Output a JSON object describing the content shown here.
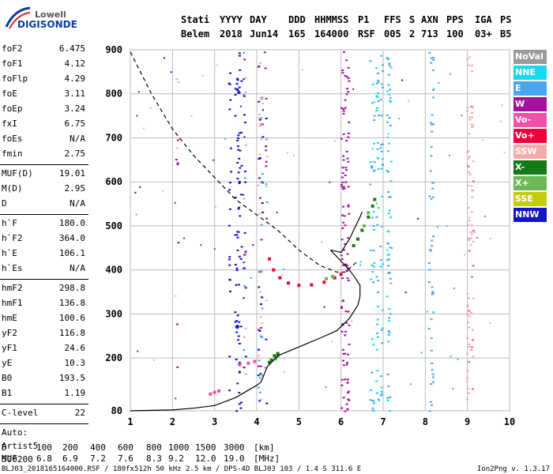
{
  "logo": {
    "line1": "Lowell",
    "line2": "DIGISONDE"
  },
  "header": {
    "row1": [
      "Stati",
      "YYYY",
      "DAY",
      "DDD",
      "HHMMSS",
      "P1",
      "FFS",
      "S",
      "AXN",
      "PPS",
      "IGA",
      "PS"
    ],
    "row2": [
      "Belem",
      "2018",
      "Jun14",
      "165",
      "164000",
      "RSF",
      "005",
      "2",
      "713",
      "100",
      "03+",
      "B5"
    ]
  },
  "params": {
    "g1": [
      [
        "foF2",
        "6.475"
      ],
      [
        "foF1",
        "4.12"
      ],
      [
        "foFlp",
        "4.29"
      ],
      [
        "foE",
        "3.11"
      ],
      [
        "foEp",
        "3.24"
      ],
      [
        "fxI",
        "6.75"
      ],
      [
        "foEs",
        "N/A"
      ],
      [
        "fmin",
        "2.75"
      ]
    ],
    "g2": [
      [
        "MUF(D)",
        "19.01"
      ],
      [
        "M(D)",
        "2.95"
      ],
      [
        "D",
        "N/A"
      ]
    ],
    "g3": [
      [
        "h`F",
        "180.0"
      ],
      [
        "h`F2",
        "364.0"
      ],
      [
        "h`E",
        "106.1"
      ],
      [
        "h`Es",
        "N/A"
      ]
    ],
    "g4": [
      [
        "hmF2",
        "298.8"
      ],
      [
        "hmF1",
        "136.8"
      ],
      [
        "hmE",
        "100.6"
      ],
      [
        "yF2",
        "116.8"
      ],
      [
        "yF1",
        "24.6"
      ],
      [
        "yE",
        "10.3"
      ],
      [
        "B0",
        "193.5"
      ],
      [
        "B1",
        "1.19"
      ]
    ],
    "g5": [
      [
        "C-level",
        "22"
      ]
    ],
    "auto": [
      "Auto:",
      "Artist5",
      "500200"
    ]
  },
  "legend": [
    {
      "label": "NoVal",
      "color": "#9a9a9a"
    },
    {
      "label": "NNE",
      "color": "#17d8ee"
    },
    {
      "label": "E",
      "color": "#49a6ee"
    },
    {
      "label": "W",
      "color": "#a2129e"
    },
    {
      "label": "Vo-",
      "color": "#f051a8"
    },
    {
      "label": "Vo+",
      "color": "#ee003c"
    },
    {
      "label": "SSW",
      "color": "#f5aaaa"
    },
    {
      "label": "X-",
      "color": "#137a16"
    },
    {
      "label": "X+",
      "color": "#6cb857"
    },
    {
      "label": "SSE",
      "color": "#c4cc12"
    },
    {
      "label": "NNW",
      "color": "#1414c8"
    }
  ],
  "footer": {
    "d_label": "D",
    "d_values": [
      "100",
      "200",
      "400",
      "600",
      "800",
      "1000",
      "1500",
      "3000",
      "[km]"
    ],
    "muf_label": "MUF",
    "muf_values": [
      "6.8",
      "6.9",
      "7.2",
      "7.6",
      "8.3",
      "9.2",
      "12.0",
      "19.0",
      "[MHz]"
    ],
    "info": "BLJ03_2018165164000.RSF / 180fx512h 50 kHz 2.5 km / DPS-4D BLJ03 103 / 1.4 S 311.6 E",
    "version": "Ion2Png v. 1.3.17"
  },
  "chart_data": {
    "type": "scatter",
    "title": "",
    "xlabel": "",
    "ylabel": "",
    "xlim": [
      1,
      10
    ],
    "ylim": [
      80,
      900
    ],
    "x_ticks": [
      1,
      2,
      3,
      4,
      5,
      6,
      7,
      8,
      9,
      10
    ],
    "y_ticks": [
      80,
      200,
      300,
      400,
      500,
      600,
      700,
      800,
      900
    ],
    "grid": true,
    "series": [
      {
        "name": "Vo+",
        "color": "#ee003c",
        "kind": "trace",
        "points": [
          [
            4.3,
            425
          ],
          [
            4.4,
            400
          ],
          [
            4.55,
            382
          ],
          [
            4.75,
            370
          ],
          [
            5.0,
            365
          ],
          [
            5.3,
            366
          ],
          [
            5.6,
            372
          ],
          [
            5.85,
            382
          ],
          [
            6.0,
            390
          ]
        ]
      },
      {
        "name": "Vo-",
        "color": "#f051a8",
        "kind": "trace",
        "points": [
          [
            3.6,
            185
          ],
          [
            3.8,
            188
          ],
          [
            3.95,
            192
          ],
          [
            2.9,
            118
          ],
          [
            3.0,
            122
          ],
          [
            3.1,
            125
          ]
        ]
      },
      {
        "name": "X-",
        "color": "#137a16",
        "kind": "trace",
        "points": [
          [
            4.3,
            190
          ],
          [
            4.35,
            195
          ],
          [
            4.42,
            205
          ],
          [
            4.5,
            210
          ],
          [
            6.3,
            455
          ],
          [
            6.4,
            470
          ],
          [
            6.5,
            490
          ],
          [
            6.65,
            520
          ],
          [
            6.75,
            545
          ],
          [
            6.8,
            560
          ]
        ]
      },
      {
        "name": "X+",
        "color": "#6cb857",
        "kind": "trace",
        "points": [
          [
            4.45,
            198
          ],
          [
            4.5,
            203
          ],
          [
            5.65,
            380
          ],
          [
            5.8,
            385
          ],
          [
            6.55,
            500
          ],
          [
            6.65,
            530
          ]
        ]
      }
    ],
    "profile_solid": [
      [
        1,
        80
      ],
      [
        2,
        82
      ],
      [
        2.5,
        86
      ],
      [
        3,
        92
      ],
      [
        3.5,
        110
      ],
      [
        4.0,
        138
      ],
      [
        4.1,
        145
      ],
      [
        4.25,
        180
      ],
      [
        4.5,
        205
      ],
      [
        5.0,
        225
      ],
      [
        5.5,
        245
      ],
      [
        5.9,
        262
      ],
      [
        6.2,
        290
      ],
      [
        6.4,
        320
      ],
      [
        6.45,
        340
      ],
      [
        6.45,
        365
      ],
      [
        6.35,
        380
      ],
      [
        6.2,
        400
      ],
      [
        6.0,
        420
      ],
      [
        5.75,
        445
      ]
    ],
    "profile_solid_upper": [
      [
        5.75,
        445
      ],
      [
        6.0,
        440
      ],
      [
        6.2,
        470
      ],
      [
        6.35,
        500
      ],
      [
        6.45,
        520
      ],
      [
        6.5,
        532
      ]
    ],
    "profile_dashed": [
      [
        1,
        895
      ],
      [
        1.5,
        800
      ],
      [
        2,
        720
      ],
      [
        2.5,
        660
      ],
      [
        3,
        610
      ],
      [
        3.5,
        560
      ],
      [
        4,
        525
      ],
      [
        4.5,
        490
      ],
      [
        5,
        445
      ],
      [
        5.5,
        410
      ],
      [
        5.9,
        395
      ],
      [
        6.1,
        395
      ],
      [
        6.4,
        420
      ]
    ]
  }
}
